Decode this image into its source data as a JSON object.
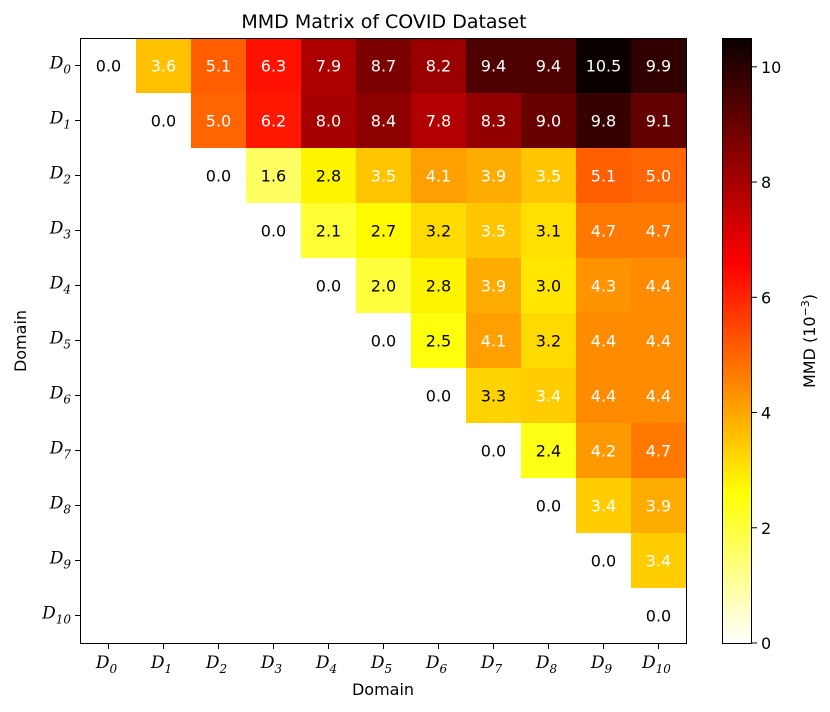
{
  "chart_data": {
    "type": "heatmap",
    "title": "MMD Matrix of COVID Dataset",
    "xlabel": "Domain",
    "ylabel": "Domain",
    "x_ticks": [
      {
        "base": "D",
        "sub": "0"
      },
      {
        "base": "D",
        "sub": "1"
      },
      {
        "base": "D",
        "sub": "2"
      },
      {
        "base": "D",
        "sub": "3"
      },
      {
        "base": "D",
        "sub": "4"
      },
      {
        "base": "D",
        "sub": "5"
      },
      {
        "base": "D",
        "sub": "6"
      },
      {
        "base": "D",
        "sub": "7"
      },
      {
        "base": "D",
        "sub": "8"
      },
      {
        "base": "D",
        "sub": "9"
      },
      {
        "base": "D",
        "sub": "10"
      }
    ],
    "y_ticks": [
      {
        "base": "D",
        "sub": "0"
      },
      {
        "base": "D",
        "sub": "1"
      },
      {
        "base": "D",
        "sub": "2"
      },
      {
        "base": "D",
        "sub": "3"
      },
      {
        "base": "D",
        "sub": "4"
      },
      {
        "base": "D",
        "sub": "5"
      },
      {
        "base": "D",
        "sub": "6"
      },
      {
        "base": "D",
        "sub": "7"
      },
      {
        "base": "D",
        "sub": "8"
      },
      {
        "base": "D",
        "sub": "9"
      },
      {
        "base": "D",
        "sub": "10"
      }
    ],
    "matrix": [
      [
        0.0,
        3.6,
        5.1,
        6.3,
        7.9,
        8.7,
        8.2,
        9.4,
        9.4,
        10.5,
        9.9
      ],
      [
        null,
        0.0,
        5.0,
        6.2,
        8.0,
        8.4,
        7.8,
        8.3,
        9.0,
        9.8,
        9.1
      ],
      [
        null,
        null,
        0.0,
        1.6,
        2.8,
        3.5,
        4.1,
        3.9,
        3.5,
        5.1,
        5.0
      ],
      [
        null,
        null,
        null,
        0.0,
        2.1,
        2.7,
        3.2,
        3.5,
        3.1,
        4.7,
        4.7
      ],
      [
        null,
        null,
        null,
        null,
        0.0,
        2.0,
        2.8,
        3.9,
        3.0,
        4.3,
        4.4
      ],
      [
        null,
        null,
        null,
        null,
        null,
        0.0,
        2.5,
        4.1,
        3.2,
        4.4,
        4.4
      ],
      [
        null,
        null,
        null,
        null,
        null,
        null,
        0.0,
        3.3,
        3.4,
        4.4,
        4.4
      ],
      [
        null,
        null,
        null,
        null,
        null,
        null,
        null,
        0.0,
        2.4,
        4.2,
        4.7
      ],
      [
        null,
        null,
        null,
        null,
        null,
        null,
        null,
        null,
        0.0,
        3.4,
        3.9
      ],
      [
        null,
        null,
        null,
        null,
        null,
        null,
        null,
        null,
        null,
        0.0,
        3.4
      ],
      [
        null,
        null,
        null,
        null,
        null,
        null,
        null,
        null,
        null,
        null,
        0.0
      ]
    ],
    "colormap": "hot_r",
    "vmin": 0,
    "vmax": 10.5,
    "colorbar": {
      "label_prefix": "MMD (10",
      "label_exp": "−3",
      "label_suffix": ")",
      "ticks": [
        0,
        2,
        4,
        6,
        8,
        10
      ]
    },
    "cell_label_format": "one decimal"
  }
}
